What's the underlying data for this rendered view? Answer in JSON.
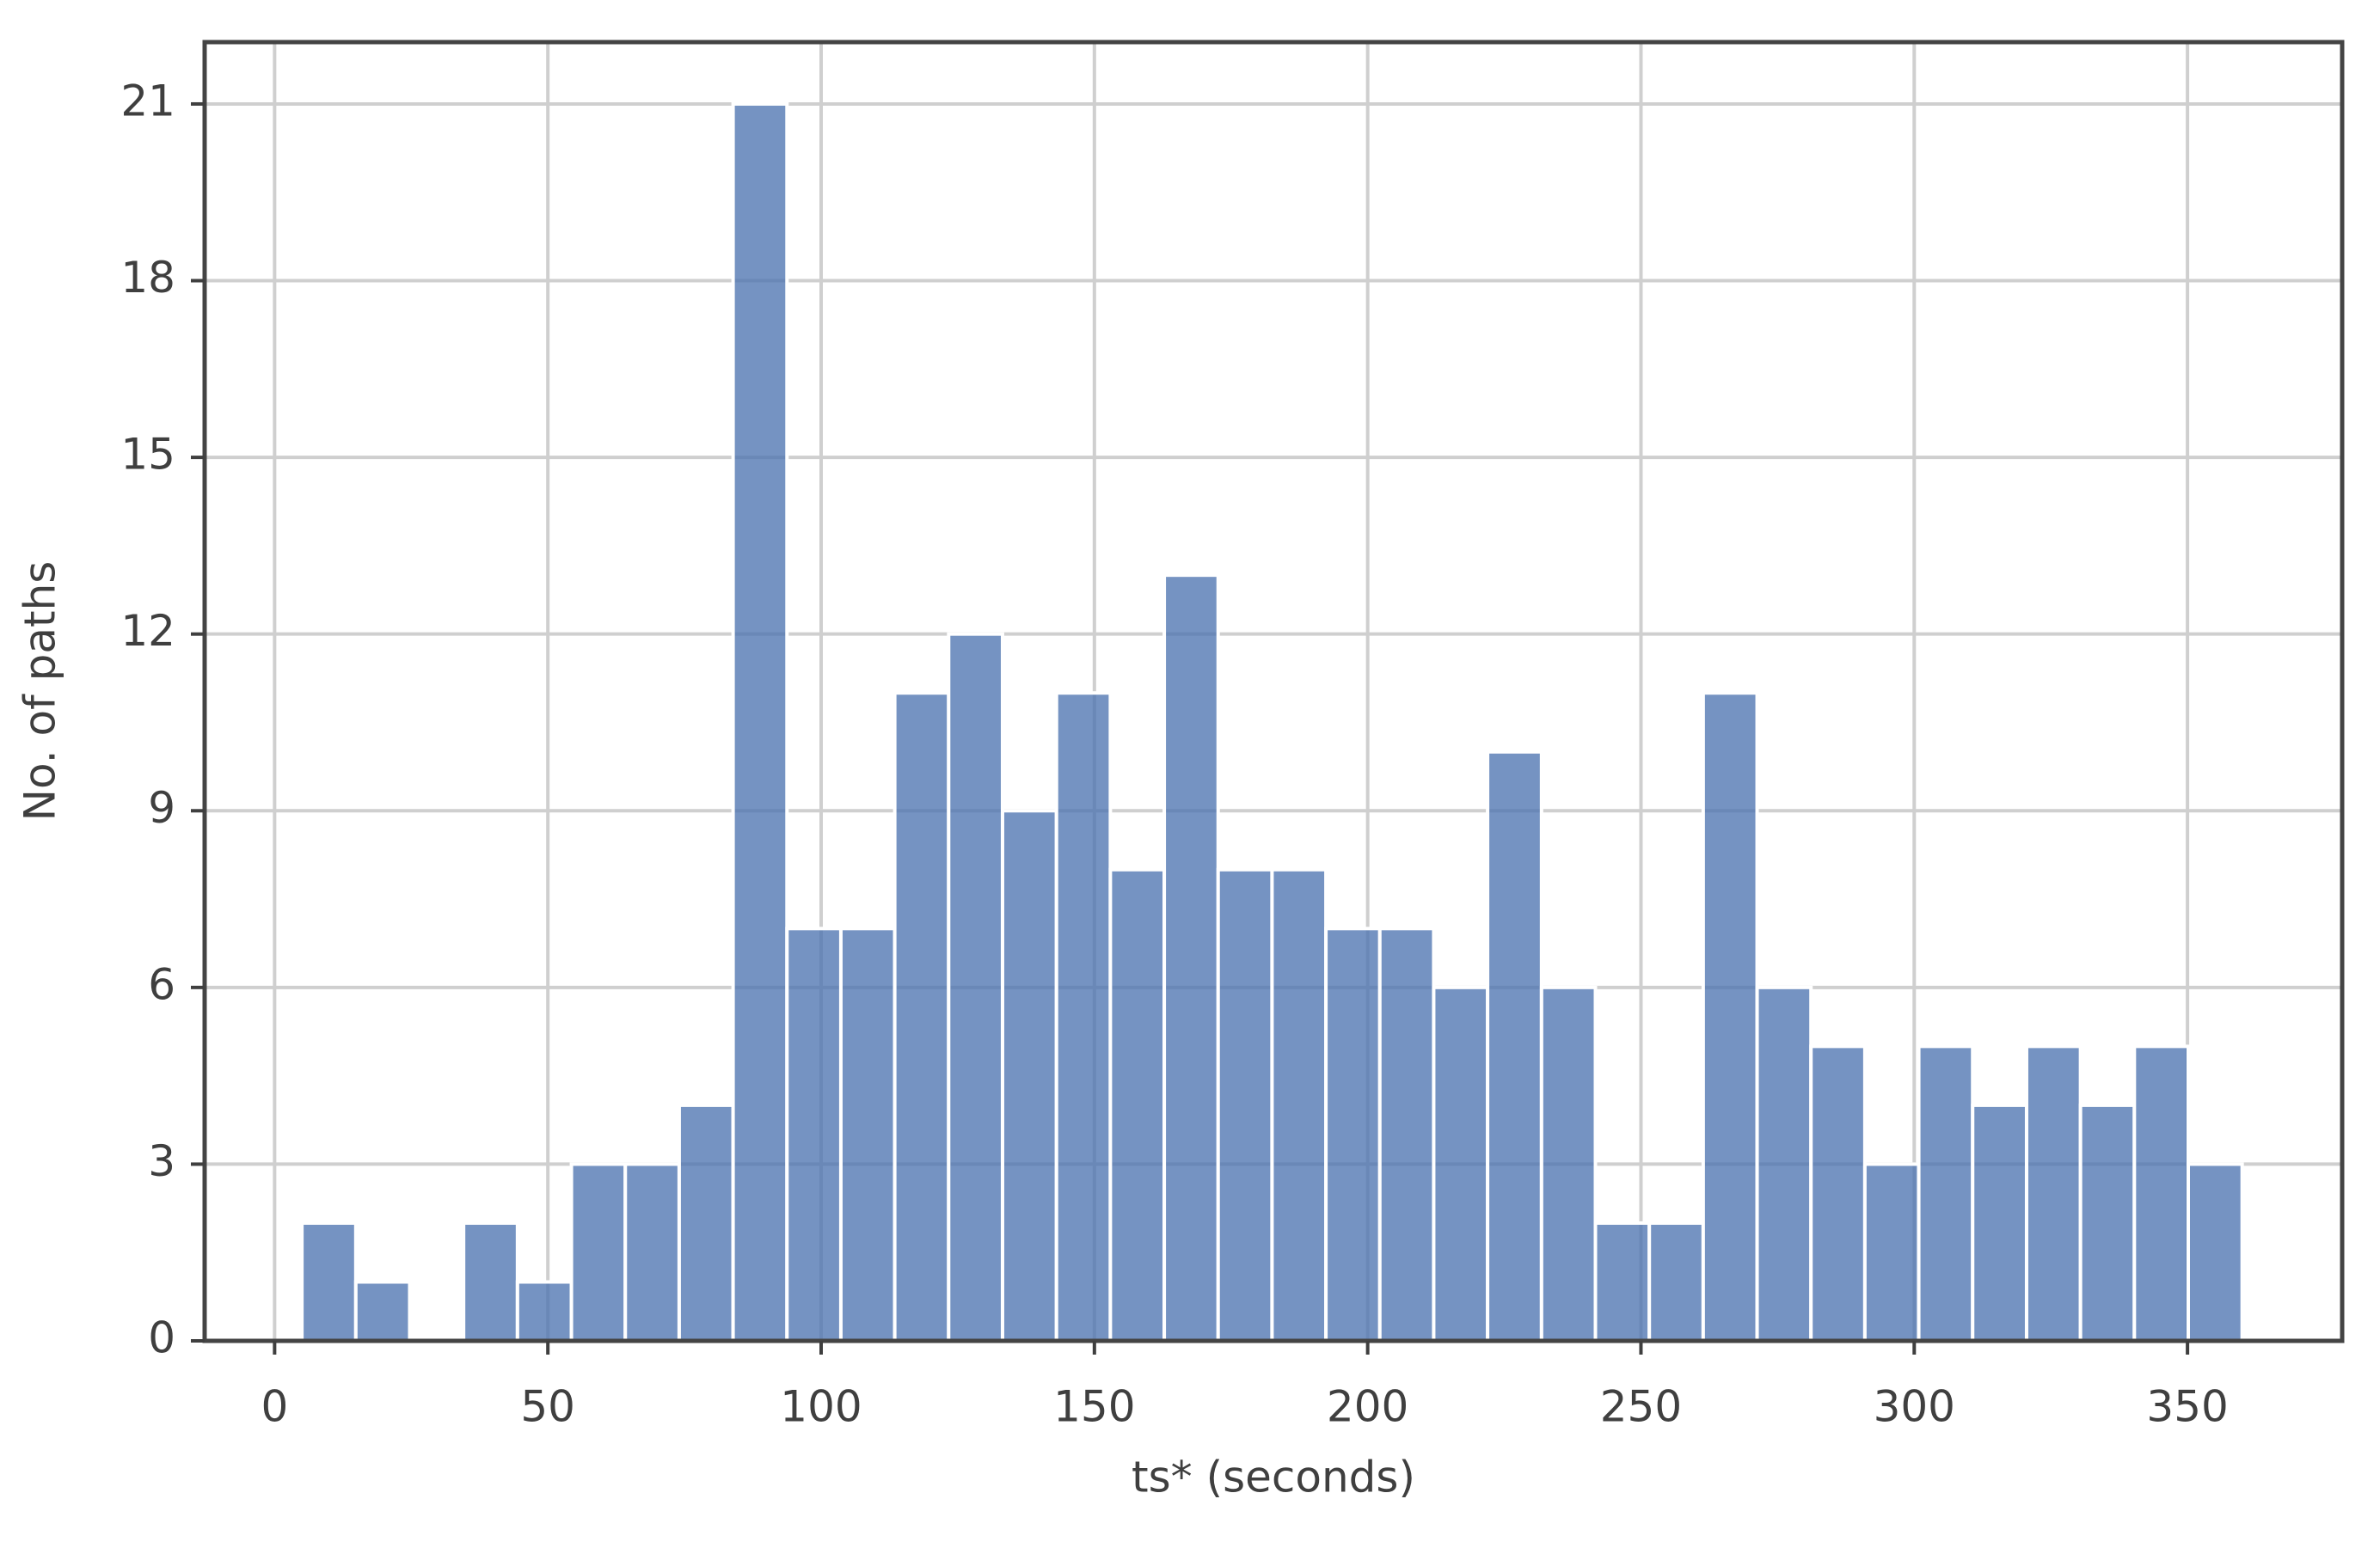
{
  "chart_data": {
    "type": "histogram",
    "xlabel": "ts* (seconds)",
    "ylabel": "No. of paths",
    "bins": [
      5,
      14.86,
      24.72,
      34.58,
      44.44,
      54.31,
      64.17,
      74.03,
      83.89,
      93.75,
      103.61,
      113.47,
      123.33,
      133.19,
      143.06,
      152.92,
      162.78,
      172.64,
      182.5,
      192.36,
      202.22,
      212.08,
      221.94,
      231.81,
      241.67,
      251.53,
      261.39,
      271.25,
      281.11,
      290.97,
      300.83,
      310.69,
      320.56,
      330.42,
      340.28,
      350.14,
      360
    ],
    "counts": [
      2,
      1,
      0,
      2,
      1,
      3,
      3,
      4,
      21,
      7,
      7,
      11,
      12,
      9,
      11,
      8,
      13,
      8,
      8,
      7,
      7,
      6,
      10,
      6,
      2,
      2,
      11,
      6,
      5,
      3,
      5,
      4,
      5,
      4,
      5,
      3
    ],
    "color": "#4c72b0",
    "xlim": [
      -12.8,
      378.3
    ],
    "ylim": [
      0,
      22.05
    ],
    "xticks": [
      0,
      50,
      100,
      150,
      200,
      250,
      300,
      350
    ],
    "yticks": [
      0,
      3,
      6,
      9,
      12,
      15,
      18,
      21
    ],
    "grid": true
  }
}
